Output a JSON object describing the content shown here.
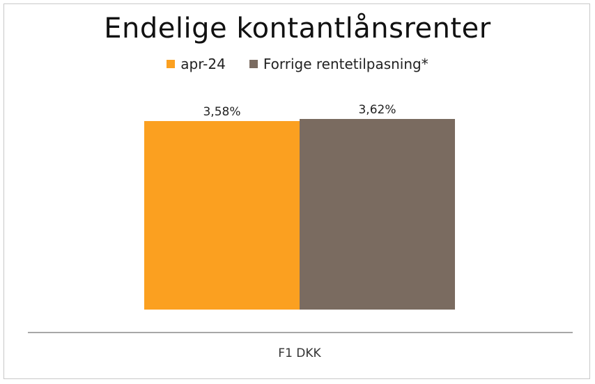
{
  "chart_data": {
    "type": "bar",
    "title": "Endelige kontantlånsrenter",
    "categories": [
      "F1 DKK"
    ],
    "series": [
      {
        "name": "apr-24",
        "values": [
          3.58
        ],
        "label": "3,58%",
        "color": "#FBA020"
      },
      {
        "name": "Forrige rentetilpasning*",
        "values": [
          3.62
        ],
        "label": "3,62%",
        "color": "#7A6B60"
      }
    ],
    "ylim": [
      0,
      3.62
    ],
    "grid": false,
    "legend_position": "top"
  }
}
